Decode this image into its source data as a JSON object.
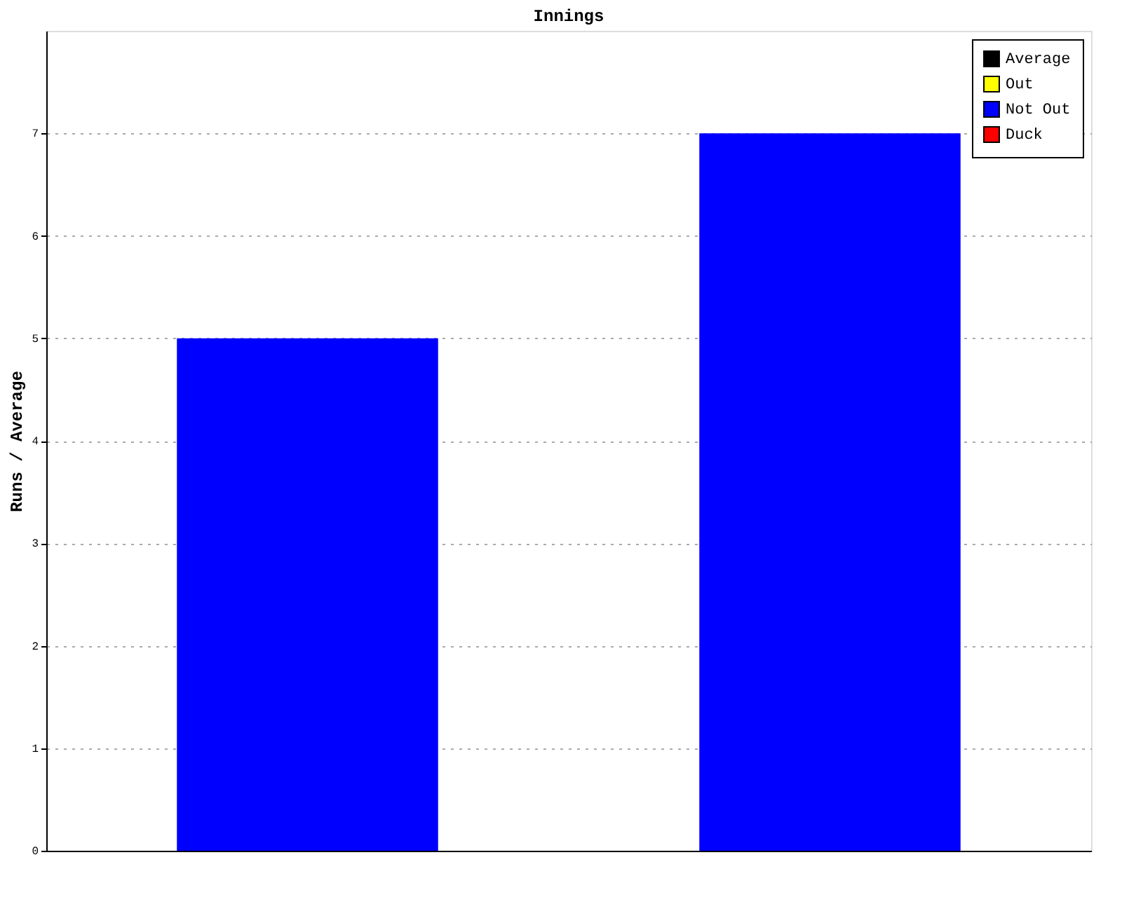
{
  "chart_data": {
    "type": "bar",
    "title": "Innings",
    "ylabel": "Runs / Average",
    "categories": [
      null,
      null
    ],
    "series": [
      {
        "name": "Average",
        "color": "#000000",
        "values": [
          null,
          null
        ]
      },
      {
        "name": "Out",
        "color": "#ffff00",
        "values": [
          null,
          null
        ]
      },
      {
        "name": "Not Out",
        "color": "#0000ff",
        "values": [
          5,
          7
        ]
      },
      {
        "name": "Duck",
        "color": "#ff0000",
        "values": [
          null,
          null
        ]
      }
    ],
    "ylim": [
      0,
      8
    ],
    "yticks": [
      0,
      1,
      2,
      3,
      4,
      5,
      6,
      7
    ],
    "grid": "y",
    "legend": "top right"
  }
}
